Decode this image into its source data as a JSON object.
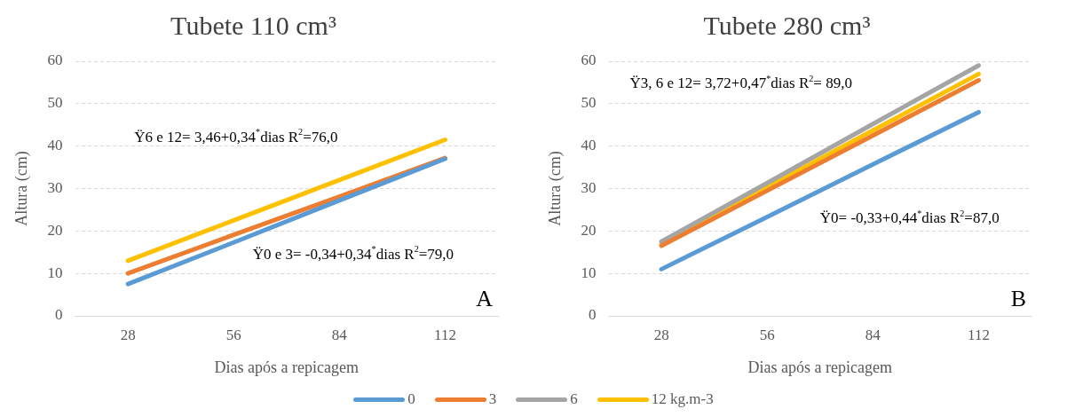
{
  "chart_data": [
    {
      "type": "line",
      "title": "Tubete 110 cm³",
      "xlabel": "Dias após a repicagem",
      "ylabel": "Altura (cm)",
      "categories": [
        "28",
        "56",
        "84",
        "112"
      ],
      "series": [
        {
          "name": "0",
          "color": "#5b9bd5",
          "values": [
            7.5,
            17.3,
            27.2,
            37
          ]
        },
        {
          "name": "3",
          "color": "#ed7d31",
          "values": [
            10,
            19.1,
            28.1,
            37.2
          ]
        },
        {
          "name": "6",
          "color": "#a5a5a5",
          "values": [
            null,
            null,
            null,
            null
          ]
        },
        {
          "name": "12 kg.m-3",
          "color": "#ffc000",
          "values": [
            13,
            22.5,
            32,
            41.5
          ]
        }
      ],
      "ylim": [
        0,
        60
      ],
      "yticks": [
        0,
        10,
        20,
        30,
        40,
        50,
        60
      ],
      "grid": "y",
      "legend": "bottom",
      "marker": "none",
      "annotations": [
        "Ÿ6 e 12= 3,46+0,34$^{*}$dias R$^{2}$=76,0",
        "Ÿ0 e 3= -0,34+0,34$^{*}$dias R$^{2}$=79,0",
        "A"
      ]
    },
    {
      "type": "line",
      "title": "Tubete 280 cm³",
      "xlabel": "Dias após a repicagem",
      "ylabel": "Altura (cm)",
      "categories": [
        "28",
        "56",
        "84",
        "112"
      ],
      "series": [
        {
          "color": "#5b9bd5",
          "values": [
            11,
            23.3,
            35.7,
            48
          ]
        },
        {
          "color": "#ed7d31",
          "values": [
            16.5,
            29.5,
            42.5,
            55.5
          ]
        },
        {
          "color": "#a5a5a5",
          "values": [
            17.5,
            31.3,
            45.2,
            59
          ]
        },
        {
          "color": "#ffc000",
          "values": [
            17,
            30.3,
            43.7,
            57
          ]
        }
      ],
      "ylim": [
        0,
        60
      ],
      "yticks": [
        0,
        10,
        20,
        30,
        40,
        50,
        60
      ],
      "grid": "y",
      "marker": "none",
      "annotations": [
        "Ÿ3, 6 e 12= 3,72+0,47$^{*}$dias R$^{2}$= 89,0",
        "Ÿ0= -0,33+0,44$^{*}$dias R$^{2}$=87,0",
        "B"
      ]
    }
  ]
}
